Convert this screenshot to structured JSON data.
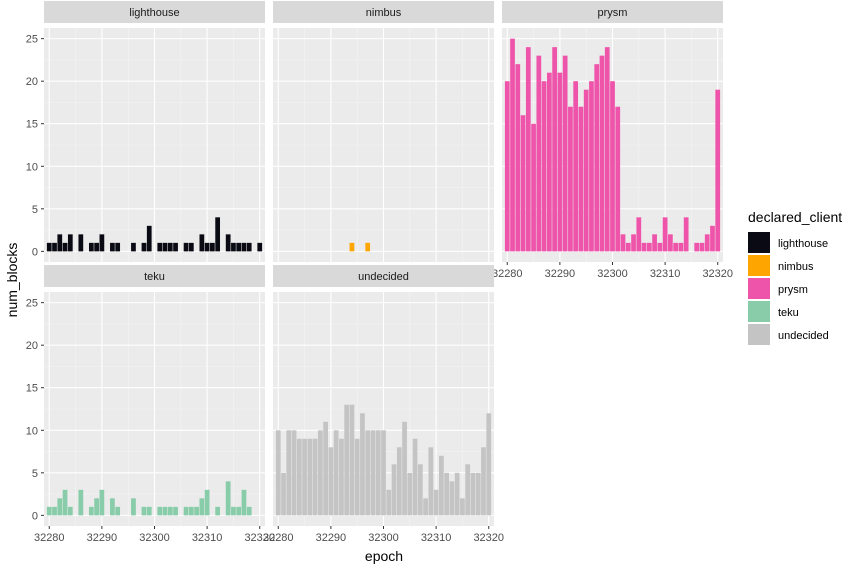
{
  "chart_data": {
    "type": "bar",
    "layout": "facet_wrap",
    "xlabel": "epoch",
    "ylabel": "num_blocks",
    "xlim": [
      32279,
      32321
    ],
    "ylim": [
      0,
      25
    ],
    "x_ticks": [
      32280,
      32290,
      32300,
      32310,
      32320
    ],
    "y_ticks": [
      0,
      5,
      10,
      15,
      20,
      25
    ],
    "grid": true,
    "legend": {
      "title": "declared_client",
      "placement": "right",
      "entries": [
        {
          "label": "lighthouse",
          "color": "#0a0a14"
        },
        {
          "label": "nimbus",
          "color": "#ffa500"
        },
        {
          "label": "prysm",
          "color": "#ee55aa"
        },
        {
          "label": "teku",
          "color": "#88ccaa"
        },
        {
          "label": "undecided",
          "color": "#c4c4c4"
        }
      ]
    },
    "facets": [
      {
        "name": "lighthouse",
        "color": "#0a0a14",
        "x": [
          32280,
          32281,
          32282,
          32283,
          32284,
          32286,
          32288,
          32289,
          32290,
          32292,
          32293,
          32296,
          32298,
          32299,
          32301,
          32302,
          32303,
          32304,
          32306,
          32307,
          32309,
          32310,
          32311,
          32312,
          32314,
          32315,
          32316,
          32317,
          32318,
          32320
        ],
        "values": [
          1,
          1,
          2,
          1,
          2,
          2,
          1,
          1,
          2,
          1,
          1,
          1,
          1,
          3,
          1,
          1,
          1,
          1,
          1,
          1,
          2,
          1,
          1,
          4,
          2,
          1,
          1,
          1,
          1,
          1
        ]
      },
      {
        "name": "nimbus",
        "color": "#ffa500",
        "x": [
          32294,
          32297
        ],
        "values": [
          1,
          1
        ]
      },
      {
        "name": "prysm",
        "color": "#ee55aa",
        "x": [
          32280,
          32281,
          32282,
          32283,
          32284,
          32285,
          32286,
          32287,
          32288,
          32289,
          32290,
          32291,
          32292,
          32293,
          32294,
          32295,
          32296,
          32297,
          32298,
          32299,
          32300,
          32301,
          32302,
          32303,
          32304,
          32305,
          32306,
          32307,
          32308,
          32309,
          32310,
          32311,
          32312,
          32313,
          32314,
          32316,
          32317,
          32318,
          32319,
          32320
        ],
        "values": [
          20,
          25,
          22,
          16,
          24,
          15,
          23,
          20,
          21,
          24,
          21,
          23,
          17,
          20,
          17,
          19,
          20,
          22,
          23,
          24,
          20,
          17,
          2,
          1,
          2,
          4,
          1,
          1,
          2,
          1,
          4,
          2,
          1,
          1,
          4,
          1,
          1,
          2,
          3,
          19
        ]
      },
      {
        "name": "teku",
        "color": "#88ccaa",
        "x": [
          32280,
          32281,
          32282,
          32283,
          32284,
          32286,
          32288,
          32289,
          32290,
          32292,
          32293,
          32296,
          32298,
          32299,
          32301,
          32302,
          32303,
          32304,
          32306,
          32307,
          32308,
          32309,
          32310,
          32312,
          32314,
          32315,
          32316,
          32317,
          32318
        ],
        "values": [
          1,
          1,
          2,
          3,
          1,
          3,
          1,
          2,
          3,
          2,
          1,
          2,
          1,
          1,
          1,
          1,
          1,
          1,
          1,
          1,
          1,
          2,
          3,
          1,
          4,
          1,
          1,
          3,
          1
        ]
      },
      {
        "name": "undecided",
        "color": "#c4c4c4",
        "x": [
          32280,
          32281,
          32282,
          32283,
          32284,
          32285,
          32286,
          32287,
          32288,
          32289,
          32290,
          32291,
          32292,
          32293,
          32294,
          32295,
          32296,
          32297,
          32298,
          32299,
          32300,
          32301,
          32302,
          32303,
          32304,
          32305,
          32306,
          32307,
          32308,
          32309,
          32310,
          32311,
          32312,
          32313,
          32314,
          32315,
          32316,
          32317,
          32318,
          32319,
          32320
        ],
        "values": [
          10,
          5,
          10,
          10,
          9,
          9,
          9,
          9,
          10,
          11,
          8,
          10,
          9,
          13,
          13,
          9,
          12,
          10,
          10,
          10,
          10,
          3,
          6,
          8,
          11,
          5,
          9,
          6,
          2,
          8,
          3,
          7,
          5,
          4,
          5,
          2,
          6,
          5,
          5,
          8,
          12
        ]
      }
    ]
  }
}
